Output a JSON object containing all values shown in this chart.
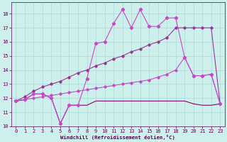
{
  "xlabel": "Windchill (Refroidissement éolien,°C)",
  "background_color": "#cef0ec",
  "grid_color": "#aad8d4",
  "x": [
    0,
    1,
    2,
    3,
    4,
    5,
    6,
    7,
    8,
    9,
    10,
    11,
    12,
    13,
    14,
    15,
    16,
    17,
    18,
    19,
    20,
    21,
    22,
    23
  ],
  "y_jagged": [
    11.8,
    11.9,
    12.3,
    12.3,
    12.0,
    10.2,
    11.5,
    11.5,
    13.4,
    15.9,
    16.0,
    17.3,
    18.3,
    17.0,
    18.3,
    17.1,
    17.1,
    17.7,
    17.7,
    14.9,
    13.6,
    13.6,
    13.7,
    11.6
  ],
  "y_linear_upper": [
    11.8,
    12.1,
    12.5,
    12.8,
    13.0,
    13.2,
    13.5,
    13.8,
    14.0,
    14.3,
    14.5,
    14.8,
    15.0,
    15.3,
    15.5,
    15.8,
    16.0,
    16.3,
    17.0,
    17.0,
    17.0,
    17.0,
    17.0,
    11.6
  ],
  "y_linear_lower": [
    11.8,
    11.9,
    12.0,
    12.1,
    12.2,
    12.3,
    12.4,
    12.5,
    12.6,
    12.7,
    12.8,
    12.9,
    13.0,
    13.1,
    13.2,
    13.3,
    13.5,
    13.7,
    14.0,
    14.9,
    13.6,
    13.6,
    13.7,
    11.6
  ],
  "y_flat": [
    11.8,
    11.9,
    12.3,
    12.3,
    12.0,
    10.2,
    11.5,
    11.5,
    11.5,
    11.8,
    11.8,
    11.8,
    11.8,
    11.8,
    11.8,
    11.8,
    11.8,
    11.8,
    11.8,
    11.8,
    11.6,
    11.5,
    11.5,
    11.6
  ],
  "color_jagged": "#cc44cc",
  "color_linear_upper": "#993399",
  "color_linear_lower": "#cc44cc",
  "color_flat": "#880066",
  "xlim": [
    -0.5,
    23.5
  ],
  "ylim": [
    10.0,
    18.8
  ],
  "yticks": [
    10,
    11,
    12,
    13,
    14,
    15,
    16,
    17,
    18
  ],
  "xticks": [
    0,
    1,
    2,
    3,
    4,
    5,
    6,
    7,
    8,
    9,
    10,
    11,
    12,
    13,
    14,
    15,
    16,
    17,
    18,
    19,
    20,
    21,
    22,
    23
  ],
  "tick_color": "#550055",
  "spine_color": "#550055",
  "label_fontsize": 5.2,
  "tick_fontsize": 5.0
}
